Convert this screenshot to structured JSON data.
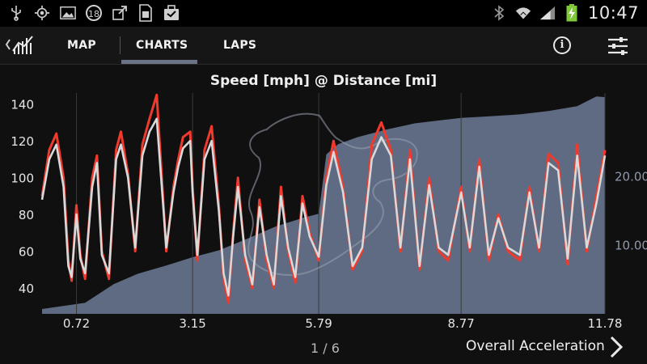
{
  "status_bar": {
    "clock": "10:47",
    "notification_count": "18",
    "left_icons": [
      "usb-icon",
      "gps-icon",
      "image-icon",
      "notification-badge",
      "upload-icon",
      "sim-icon",
      "briefcase-icon"
    ],
    "right_icons": [
      "bluetooth-icon",
      "wifi-icon",
      "signal-icon",
      "battery-charging-icon"
    ]
  },
  "app_bar": {
    "tabs": [
      {
        "label": "MAP",
        "active": false
      },
      {
        "label": "CHARTS",
        "active": true
      },
      {
        "label": "LAPS",
        "active": false
      }
    ],
    "info_glyph": "i",
    "colors": {
      "active_tab_indicator": "#6b7486",
      "background": "#161616"
    }
  },
  "footer": {
    "pager": "1 / 6",
    "next_label": "Overall Acceleration"
  },
  "chart_data": {
    "type": "line",
    "title": "Speed [mph] @ Distance [mi]",
    "xlabel": "",
    "ylabel": "",
    "x_tick_labels": [
      "0.72",
      "3.15",
      "5.79",
      "8.77",
      "11.78"
    ],
    "x_ticks": [
      0.72,
      3.15,
      5.79,
      8.77,
      11.78
    ],
    "xlim": [
      0,
      11.78
    ],
    "ylim": [
      26,
      146
    ],
    "y_tick_labels": [
      "140",
      "120",
      "100",
      "80",
      "60",
      "40"
    ],
    "y_ticks": [
      140,
      120,
      100,
      80,
      60,
      40
    ],
    "y2_tick_labels": [
      "20.00",
      "10.00"
    ],
    "y2_ticks": [
      20,
      10
    ],
    "y2lim": [
      0,
      32
    ],
    "grid": "vertical",
    "colors": {
      "series_1": "#f03a2e",
      "series_2": "#d9d9d9",
      "area": "#5f6b83",
      "track_outline": "#9aa2b0",
      "background": "#101010"
    },
    "area_series": {
      "axis": "right",
      "x": [
        0,
        0.9,
        1.5,
        2.0,
        2.6,
        3.15,
        3.7,
        4.3,
        4.9,
        5.5,
        5.79,
        5.95,
        6.2,
        6.6,
        7.2,
        7.8,
        8.4,
        8.77,
        9.3,
        10.0,
        10.6,
        11.2,
        11.6,
        11.78
      ],
      "values": [
        0.7,
        1.6,
        4.3,
        5.8,
        7.0,
        8.2,
        9.2,
        10.9,
        12.7,
        14.0,
        14.5,
        23.1,
        24.6,
        25.6,
        26.7,
        27.6,
        28.1,
        28.4,
        28.6,
        28.9,
        29.4,
        30.1,
        31.5,
        31.4
      ]
    },
    "series": [
      {
        "x": [
          0,
          0.15,
          0.3,
          0.45,
          0.55,
          0.62,
          0.72,
          0.8,
          0.9,
          1.05,
          1.15,
          1.25,
          1.4,
          1.55,
          1.65,
          1.8,
          1.95,
          2.1,
          2.25,
          2.4,
          2.6,
          2.75,
          2.85,
          2.95,
          3.1,
          3.15,
          3.25,
          3.4,
          3.55,
          3.7,
          3.8,
          3.9,
          4.0,
          4.1,
          4.25,
          4.4,
          4.55,
          4.7,
          4.85,
          5.0,
          5.15,
          5.3,
          5.45,
          5.6,
          5.79,
          5.95,
          6.1,
          6.3,
          6.5,
          6.7,
          6.9,
          7.1,
          7.3,
          7.5,
          7.7,
          7.9,
          8.1,
          8.3,
          8.5,
          8.77,
          8.95,
          9.15,
          9.35,
          9.55,
          9.75,
          10.0,
          10.2,
          10.4,
          10.6,
          10.8,
          11.0,
          11.2,
          11.4,
          11.6,
          11.78
        ],
        "values": [
          90,
          115,
          124,
          100,
          55,
          44,
          85,
          58,
          45,
          100,
          112,
          60,
          45,
          115,
          125,
          102,
          60,
          118,
          132,
          145,
          60,
          95,
          110,
          122,
          125,
          95,
          55,
          115,
          128,
          85,
          45,
          32,
          70,
          100,
          55,
          40,
          88,
          55,
          40,
          95,
          60,
          43,
          90,
          70,
          55,
          100,
          120,
          95,
          50,
          60,
          118,
          130,
          115,
          60,
          115,
          50,
          100,
          60,
          55,
          95,
          60,
          110,
          55,
          80,
          60,
          55,
          95,
          60,
          113,
          108,
          53,
          118,
          60,
          90,
          115
        ]
      },
      {
        "x": [
          0,
          0.15,
          0.3,
          0.45,
          0.55,
          0.62,
          0.72,
          0.8,
          0.9,
          1.05,
          1.15,
          1.25,
          1.4,
          1.55,
          1.65,
          1.8,
          1.95,
          2.1,
          2.25,
          2.4,
          2.6,
          2.75,
          2.85,
          2.95,
          3.1,
          3.15,
          3.25,
          3.4,
          3.55,
          3.7,
          3.8,
          3.9,
          4.0,
          4.1,
          4.25,
          4.4,
          4.55,
          4.7,
          4.85,
          5.0,
          5.15,
          5.3,
          5.45,
          5.6,
          5.79,
          5.95,
          6.1,
          6.3,
          6.5,
          6.7,
          6.9,
          7.1,
          7.3,
          7.5,
          7.7,
          7.9,
          8.1,
          8.3,
          8.5,
          8.77,
          8.95,
          9.15,
          9.35,
          9.55,
          9.75,
          10.0,
          10.2,
          10.4,
          10.6,
          10.8,
          11.0,
          11.2,
          11.4,
          11.6,
          11.78
        ],
        "values": [
          88,
          110,
          118,
          95,
          52,
          46,
          80,
          56,
          48,
          95,
          108,
          58,
          48,
          110,
          118,
          100,
          62,
          112,
          125,
          132,
          62,
          92,
          106,
          116,
          120,
          92,
          58,
          110,
          120,
          82,
          48,
          36,
          68,
          95,
          58,
          42,
          84,
          58,
          42,
          90,
          62,
          46,
          86,
          68,
          57,
          96,
          114,
          92,
          52,
          62,
          110,
          122,
          112,
          62,
          110,
          52,
          96,
          62,
          58,
          92,
          62,
          106,
          58,
          78,
          62,
          58,
          92,
          62,
          108,
          104,
          56,
          112,
          62,
          86,
          112
        ]
      }
    ]
  }
}
